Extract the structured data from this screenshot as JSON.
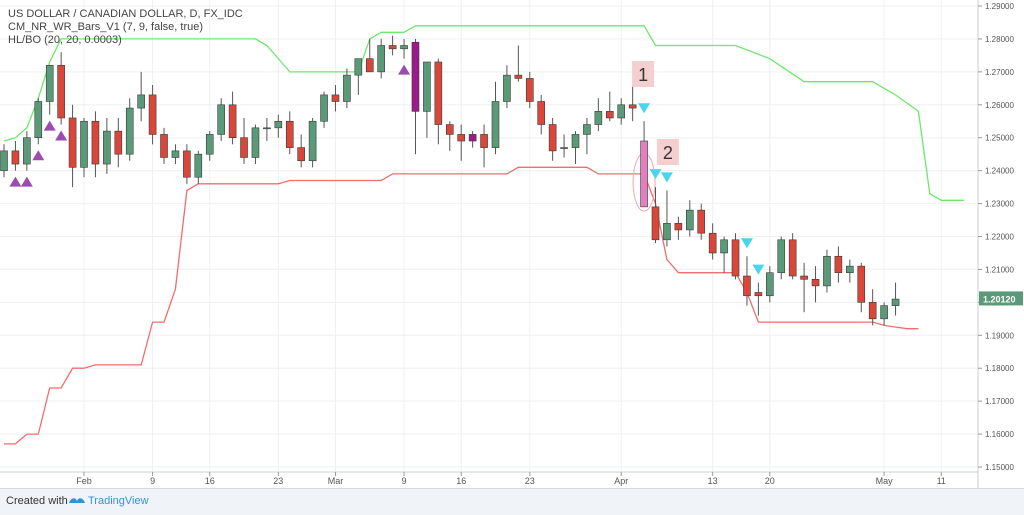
{
  "legend": {
    "symbol": "US DOLLAR / CANADIAN DOLLAR, D, FX_IDC",
    "indicator1": "CM_NR_WR_Bars_V1 (7, 9, false, true)",
    "indicator2": "HL/BO (20, 20, 0.0003)"
  },
  "footer": {
    "created_with": "Created with",
    "brand": "TradingView"
  },
  "annotations": {
    "label1": "1",
    "label2": "2"
  },
  "colors": {
    "up": "#5b9a78",
    "down": "#d8473a",
    "purple_bar": "#9c1a8a",
    "pink_bar": "#e17fbf",
    "upper_line": "#6ee76e",
    "lower_line": "#f26d6d",
    "tri_up": "#9c4bb0",
    "tri_down": "#49d6ec",
    "price_tag": "#5b9a78"
  },
  "chart_data": {
    "type": "candlestick",
    "symbol": "USD/CAD",
    "timeframe": "D",
    "ylim": [
      1.1495,
      1.2915
    ],
    "y_ticks": [
      "1.15000",
      "1.16000",
      "1.17000",
      "1.18000",
      "1.19000",
      "1.20000",
      "1.21000",
      "1.22000",
      "1.23000",
      "1.24000",
      "1.25000",
      "1.26000",
      "1.27000",
      "1.28000",
      "1.29000"
    ],
    "x_ticks": [
      {
        "i": 7,
        "label": "Feb"
      },
      {
        "i": 13,
        "label": "9"
      },
      {
        "i": 18,
        "label": "16"
      },
      {
        "i": 24,
        "label": "23"
      },
      {
        "i": 29,
        "label": "Mar"
      },
      {
        "i": 35,
        "label": "9"
      },
      {
        "i": 40,
        "label": "16"
      },
      {
        "i": 46,
        "label": "23"
      },
      {
        "i": 54,
        "label": "Apr"
      },
      {
        "i": 62,
        "label": "13"
      },
      {
        "i": 67,
        "label": "20"
      },
      {
        "i": 77,
        "label": "May"
      },
      {
        "i": 82,
        "label": "11"
      }
    ],
    "last_price": "1.20120",
    "candles": [
      [
        1.24,
        1.248,
        1.238,
        1.246
      ],
      [
        1.246,
        1.249,
        1.24,
        1.242
      ],
      [
        1.242,
        1.252,
        1.24,
        1.25
      ],
      [
        1.25,
        1.262,
        1.248,
        1.261
      ],
      [
        1.261,
        1.271,
        1.257,
        1.272
      ],
      [
        1.272,
        1.276,
        1.254,
        1.256
      ],
      [
        1.256,
        1.26,
        1.235,
        1.241
      ],
      [
        1.241,
        1.256,
        1.238,
        1.255
      ],
      [
        1.255,
        1.258,
        1.238,
        1.242
      ],
      [
        1.242,
        1.256,
        1.239,
        1.252
      ],
      [
        1.252,
        1.256,
        1.241,
        1.245
      ],
      [
        1.245,
        1.262,
        1.243,
        1.259
      ],
      [
        1.259,
        1.27,
        1.255,
        1.263
      ],
      [
        1.263,
        1.266,
        1.248,
        1.251
      ],
      [
        1.251,
        1.253,
        1.242,
        1.244
      ],
      [
        1.244,
        1.248,
        1.242,
        1.246
      ],
      [
        1.246,
        1.248,
        1.236,
        1.238
      ],
      [
        1.238,
        1.246,
        1.236,
        1.245
      ],
      [
        1.245,
        1.252,
        1.243,
        1.251
      ],
      [
        1.251,
        1.262,
        1.249,
        1.26
      ],
      [
        1.26,
        1.264,
        1.248,
        1.25
      ],
      [
        1.25,
        1.256,
        1.242,
        1.244
      ],
      [
        1.244,
        1.254,
        1.242,
        1.253
      ],
      [
        1.253,
        1.256,
        1.249,
        1.253
      ],
      [
        1.253,
        1.257,
        1.25,
        1.255
      ],
      [
        1.255,
        1.258,
        1.245,
        1.247
      ],
      [
        1.247,
        1.251,
        1.241,
        1.243
      ],
      [
        1.243,
        1.256,
        1.241,
        1.255
      ],
      [
        1.255,
        1.264,
        1.253,
        1.263
      ],
      [
        1.263,
        1.266,
        1.258,
        1.261
      ],
      [
        1.261,
        1.271,
        1.259,
        1.269
      ],
      [
        1.269,
        1.274,
        1.263,
        1.274
      ],
      [
        1.274,
        1.28,
        1.27,
        1.27
      ],
      [
        1.27,
        1.28,
        1.268,
        1.278
      ],
      [
        1.278,
        1.281,
        1.275,
        1.277
      ],
      [
        1.277,
        1.28,
        1.274,
        1.278
      ],
      [
        1.279,
        1.28,
        1.245,
        1.258
      ],
      [
        1.258,
        1.273,
        1.25,
        1.273
      ],
      [
        1.273,
        1.274,
        1.248,
        1.254
      ],
      [
        1.254,
        1.255,
        1.246,
        1.251
      ],
      [
        1.251,
        1.254,
        1.243,
        1.249
      ],
      [
        1.249,
        1.252,
        1.247,
        1.251
      ],
      [
        1.251,
        1.254,
        1.241,
        1.247
      ],
      [
        1.247,
        1.267,
        1.245,
        1.261
      ],
      [
        1.261,
        1.272,
        1.259,
        1.269
      ],
      [
        1.269,
        1.278,
        1.267,
        1.268
      ],
      [
        1.268,
        1.27,
        1.259,
        1.261
      ],
      [
        1.261,
        1.263,
        1.251,
        1.254
      ],
      [
        1.254,
        1.256,
        1.243,
        1.246
      ],
      [
        1.247,
        1.251,
        1.244,
        1.247
      ],
      [
        1.247,
        1.252,
        1.242,
        1.251
      ],
      [
        1.251,
        1.256,
        1.245,
        1.254
      ],
      [
        1.254,
        1.262,
        1.252,
        1.258
      ],
      [
        1.258,
        1.264,
        1.255,
        1.256
      ],
      [
        1.256,
        1.262,
        1.254,
        1.26
      ],
      [
        1.26,
        1.266,
        1.255,
        1.259
      ],
      [
        1.249,
        1.255,
        1.229,
        1.229
      ],
      [
        1.229,
        1.235,
        1.218,
        1.219
      ],
      [
        1.219,
        1.234,
        1.217,
        1.224
      ],
      [
        1.224,
        1.226,
        1.219,
        1.222
      ],
      [
        1.222,
        1.231,
        1.22,
        1.228
      ],
      [
        1.228,
        1.23,
        1.219,
        1.221
      ],
      [
        1.221,
        1.224,
        1.213,
        1.215
      ],
      [
        1.215,
        1.22,
        1.209,
        1.219
      ],
      [
        1.219,
        1.221,
        1.207,
        1.208
      ],
      [
        1.208,
        1.214,
        1.199,
        1.202
      ],
      [
        1.203,
        1.206,
        1.196,
        1.202
      ],
      [
        1.202,
        1.211,
        1.2,
        1.209
      ],
      [
        1.209,
        1.22,
        1.207,
        1.219
      ],
      [
        1.219,
        1.221,
        1.207,
        1.208
      ],
      [
        1.208,
        1.212,
        1.197,
        1.207
      ],
      [
        1.207,
        1.211,
        1.2,
        1.205
      ],
      [
        1.205,
        1.216,
        1.203,
        1.214
      ],
      [
        1.214,
        1.217,
        1.206,
        1.209
      ],
      [
        1.209,
        1.213,
        1.206,
        1.211
      ],
      [
        1.211,
        1.212,
        1.197,
        1.2
      ],
      [
        1.2,
        1.204,
        1.193,
        1.195
      ],
      [
        1.195,
        1.2,
        1.193,
        1.199
      ],
      [
        1.199,
        1.206,
        1.196,
        1.201
      ]
    ],
    "upper_band": [
      [
        0,
        1.249
      ],
      [
        1,
        1.25
      ],
      [
        2,
        1.253
      ],
      [
        3,
        1.262
      ],
      [
        4,
        1.273
      ],
      [
        5,
        1.28
      ],
      [
        22,
        1.28
      ],
      [
        23,
        1.278
      ],
      [
        25,
        1.27
      ],
      [
        31,
        1.27
      ],
      [
        32,
        1.28
      ],
      [
        33,
        1.282
      ],
      [
        35,
        1.282
      ],
      [
        36,
        1.284
      ],
      [
        56,
        1.284
      ],
      [
        57,
        1.278
      ],
      [
        64,
        1.278
      ],
      [
        67,
        1.274
      ],
      [
        70,
        1.267
      ],
      [
        76,
        1.267
      ],
      [
        78,
        1.263
      ],
      [
        80,
        1.258
      ],
      [
        81,
        1.233
      ],
      [
        82,
        1.231
      ],
      [
        84,
        1.231
      ]
    ],
    "lower_band": [
      [
        0,
        1.157
      ],
      [
        1,
        1.157
      ],
      [
        2,
        1.16
      ],
      [
        3,
        1.16
      ],
      [
        4,
        1.174
      ],
      [
        5,
        1.174
      ],
      [
        6,
        1.18
      ],
      [
        7,
        1.18
      ],
      [
        8,
        1.181
      ],
      [
        12,
        1.181
      ],
      [
        13,
        1.194
      ],
      [
        14,
        1.194
      ],
      [
        15,
        1.204
      ],
      [
        16,
        1.234
      ],
      [
        17,
        1.236
      ],
      [
        24,
        1.236
      ],
      [
        25,
        1.237
      ],
      [
        33,
        1.237
      ],
      [
        34,
        1.239
      ],
      [
        35,
        1.239
      ],
      [
        36,
        1.239
      ],
      [
        44,
        1.239
      ],
      [
        45,
        1.241
      ],
      [
        51,
        1.241
      ],
      [
        52,
        1.239
      ],
      [
        56,
        1.239
      ],
      [
        57,
        1.23
      ],
      [
        58,
        1.213
      ],
      [
        59,
        1.209
      ],
      [
        64,
        1.209
      ],
      [
        65,
        1.203
      ],
      [
        66,
        1.194
      ],
      [
        75,
        1.194
      ],
      [
        76,
        1.194
      ],
      [
        77,
        1.193
      ],
      [
        79,
        1.192
      ],
      [
        80,
        1.192
      ]
    ],
    "triangles_up": [
      1,
      2,
      3,
      4,
      5,
      35
    ],
    "triangles_down": [
      56,
      57,
      58,
      65,
      66
    ]
  }
}
